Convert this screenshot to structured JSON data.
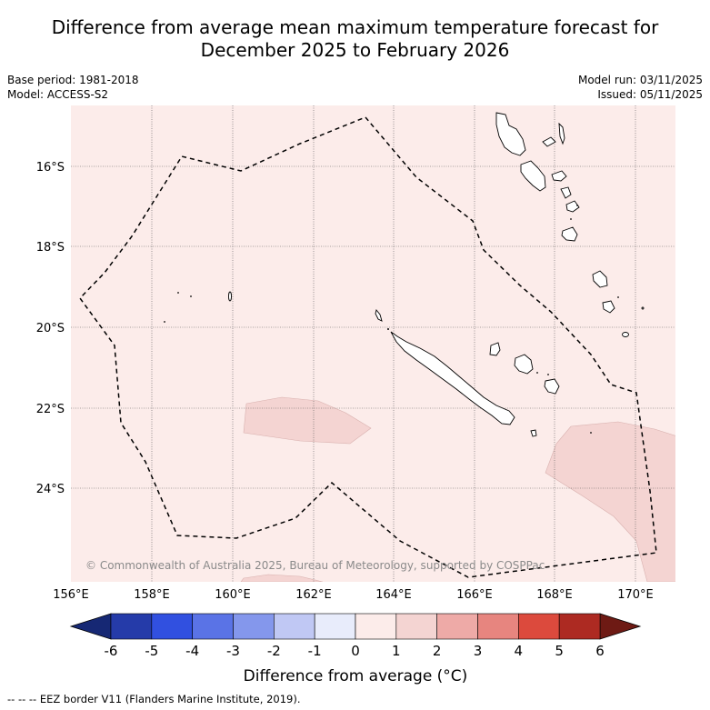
{
  "title_line1": "Difference from average mean maximum temperature forecast for",
  "title_line2": "December 2025 to February 2026",
  "base_period": "Base period: 1981-2018",
  "model": "Model: ACCESS-S2",
  "model_run": "Model run: 03/11/2025",
  "issued": "Issued: 05/11/2025",
  "copyright": "© Commonwealth of Australia 2025, Bureau of Meteorology, supported by COSPPac",
  "lat_labels": [
    "16°S",
    "18°S",
    "20°S",
    "22°S",
    "24°S"
  ],
  "lon_labels": [
    "156°E",
    "158°E",
    "160°E",
    "162°E",
    "164°E",
    "166°E",
    "168°E",
    "170°E"
  ],
  "colorbar": {
    "ticks": [
      "-6",
      "-5",
      "-4",
      "-3",
      "-2",
      "-1",
      "0",
      "1",
      "2",
      "3",
      "4",
      "5",
      "6"
    ],
    "colors": [
      "#253ba9",
      "#3150e0",
      "#5a73e6",
      "#8497ec",
      "#c0c8f4",
      "#e8ecfb",
      "#fcecea",
      "#f4d4d2",
      "#eeaaa7",
      "#e7857f",
      "#dc4a3d",
      "#ad2a22"
    ],
    "under_color": "#162874",
    "over_color": "#6e1a14",
    "label": "Difference from average (°C)"
  },
  "footer": "--  --  -- EEZ border V11 (Flanders Marine Institute, 2019)."
}
